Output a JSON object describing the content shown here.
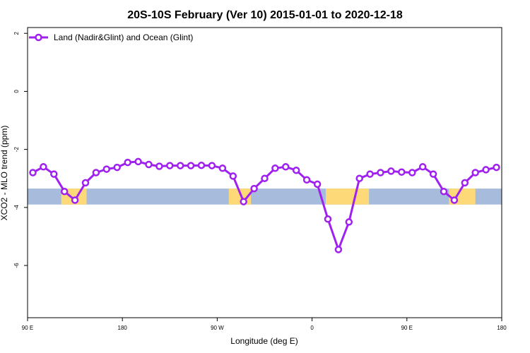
{
  "chart_data": {
    "type": "line",
    "title": "20S-10S February (Ver 10)   2015-01-01 to 2020-12-18",
    "xlabel": "Longitude (deg E)",
    "ylabel": "XCO2 - MLO trend (ppm)",
    "xlim": [
      90,
      540
    ],
    "ylim": [
      -7.8,
      2.2
    ],
    "xticks": [
      {
        "value": 90,
        "label": "90 E"
      },
      {
        "value": 180,
        "label": "180"
      },
      {
        "value": 270,
        "label": "90 W"
      },
      {
        "value": 360,
        "label": "0"
      },
      {
        "value": 450,
        "label": "90 E"
      },
      {
        "value": 540,
        "label": "180"
      }
    ],
    "yticks": [
      {
        "value": 2,
        "label": "2"
      },
      {
        "value": 0,
        "label": "0"
      },
      {
        "value": -2,
        "label": "-2"
      },
      {
        "value": -4,
        "label": "-4"
      },
      {
        "value": -6,
        "label": "-6"
      }
    ],
    "map_strip": {
      "ymin": -3.9,
      "ymax": -3.35,
      "ocean_color": "#a7bcdc",
      "land_color": "#fdd978",
      "land_ranges_deg_e": [
        [
          122,
          146
        ],
        [
          281,
          302
        ],
        [
          373,
          414
        ],
        [
          490,
          515
        ]
      ]
    },
    "series": [
      {
        "name": "Land (Nadir&Glint) and Ocean (Glint)",
        "color": "#a020f0",
        "x": [
          95,
          105,
          115,
          125,
          135,
          145,
          155,
          165,
          175,
          185,
          195,
          205,
          215,
          225,
          235,
          245,
          255,
          265,
          275,
          285,
          295,
          305,
          315,
          325,
          335,
          345,
          355,
          365,
          375,
          385,
          395,
          405,
          415,
          425,
          435,
          445,
          455,
          465,
          475,
          485,
          495,
          505,
          515,
          525,
          535
        ],
        "y": [
          -2.8,
          -2.6,
          -2.85,
          -3.45,
          -3.75,
          -3.15,
          -2.8,
          -2.68,
          -2.62,
          -2.45,
          -2.42,
          -2.52,
          -2.58,
          -2.56,
          -2.56,
          -2.56,
          -2.55,
          -2.56,
          -2.65,
          -2.92,
          -3.8,
          -3.35,
          -3.0,
          -2.65,
          -2.6,
          -2.72,
          -3.05,
          -3.2,
          -4.4,
          -5.45,
          -4.5,
          -3.0,
          -2.85,
          -2.8,
          -2.75,
          -2.78,
          -2.8,
          -2.6,
          -2.85,
          -3.45,
          -3.75,
          -3.15,
          -2.8,
          -2.7,
          -2.62
        ]
      }
    ],
    "legend": {
      "position": "top-left"
    }
  }
}
